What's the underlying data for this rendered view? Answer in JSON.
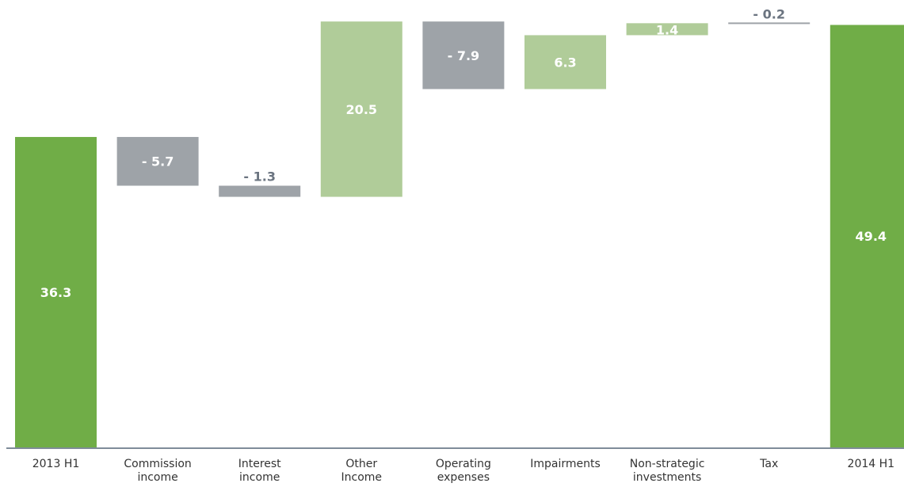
{
  "chart_data": {
    "type": "bar",
    "subtype": "waterfall",
    "title": "",
    "xlabel": "",
    "ylabel": "",
    "categories": [
      "2013 H1",
      "Commission income",
      "Interest income",
      "Other Income",
      "Operating expenses",
      "Impairments",
      "Non-strategic investments",
      "Tax",
      "2014 H1"
    ],
    "category_labels": [
      [
        "2013 H1"
      ],
      [
        "Commission",
        "income"
      ],
      [
        "Interest",
        "income"
      ],
      [
        "Other",
        "Income"
      ],
      [
        "Operating",
        "expenses"
      ],
      [
        "Impairments"
      ],
      [
        "Non-strategic",
        "investments"
      ],
      [
        "Tax"
      ],
      [
        "2014 H1"
      ]
    ],
    "values": [
      36.3,
      -5.7,
      -1.3,
      20.5,
      -7.9,
      6.3,
      1.4,
      -0.2,
      49.4
    ],
    "value_labels": [
      "36.3",
      "- 5.7",
      "- 1.3",
      "20.5",
      "- 7.9",
      "6.3",
      "1.4",
      "- 0.2",
      "49.4"
    ],
    "kinds": [
      "total",
      "delta",
      "delta",
      "delta",
      "delta",
      "delta",
      "delta",
      "delta",
      "total"
    ],
    "ylim": [
      0,
      50
    ],
    "grid": false,
    "colors": {
      "total": "#70ad47",
      "increase": "#b0cc99",
      "decrease": "#9ea3a8",
      "total_text": "#ffffff",
      "increase_text": "#ffffff",
      "decrease_text": "#ffffff",
      "small_decrease_text": "#6b7480",
      "axis": "#7f8c99"
    }
  }
}
